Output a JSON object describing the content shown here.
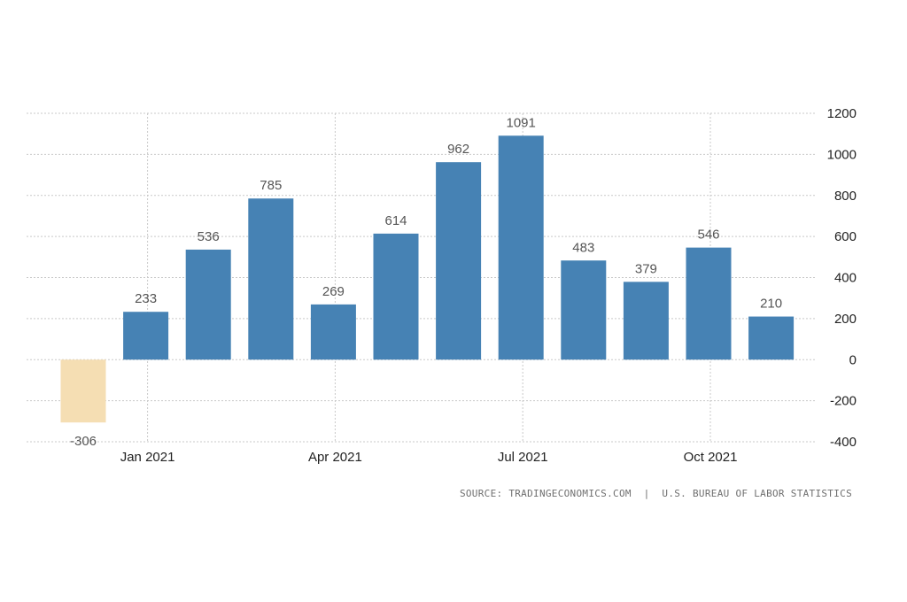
{
  "chart_data": {
    "type": "bar",
    "title": "",
    "xlabel": "",
    "ylabel": "",
    "ylim": [
      -400,
      1200
    ],
    "yticks": [
      1200,
      1000,
      800,
      600,
      400,
      200,
      0,
      -200,
      -400
    ],
    "yaxis_position": "right",
    "grid": true,
    "categories": [
      "Dec 2020",
      "Jan 2021",
      "Feb 2021",
      "Mar 2021",
      "Apr 2021",
      "May 2021",
      "Jun 2021",
      "Jul 2021",
      "Aug 2021",
      "Sep 2021",
      "Oct 2021",
      "Nov 2021"
    ],
    "values": [
      -306,
      233,
      536,
      785,
      269,
      614,
      962,
      1091,
      483,
      379,
      546,
      210
    ],
    "x_tick_labels": [
      {
        "category": "Jan 2021",
        "label": "Jan 2021"
      },
      {
        "category": "Apr 2021",
        "label": "Apr 2021"
      },
      {
        "category": "Jul 2021",
        "label": "Jul 2021"
      },
      {
        "category": "Oct 2021",
        "label": "Oct 2021"
      }
    ],
    "colors": {
      "positive": "#4682b4",
      "negative": "#f5deb3"
    },
    "source": "SOURCE: TRADINGECONOMICS.COM  |  U.S. BUREAU OF LABOR STATISTICS"
  }
}
